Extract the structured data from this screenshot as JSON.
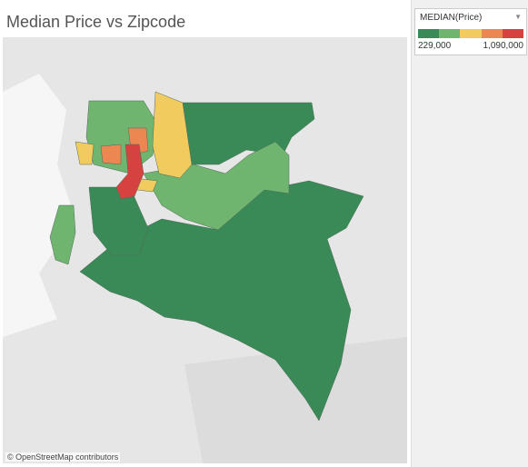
{
  "header": {
    "title": "Median Price vs Zipcode"
  },
  "legend": {
    "title": "MEDIAN(Price)",
    "min_label": "229,000",
    "max_label": "1,090,000"
  },
  "map": {
    "attribution": "© OpenStreetMap contributors"
  }
}
